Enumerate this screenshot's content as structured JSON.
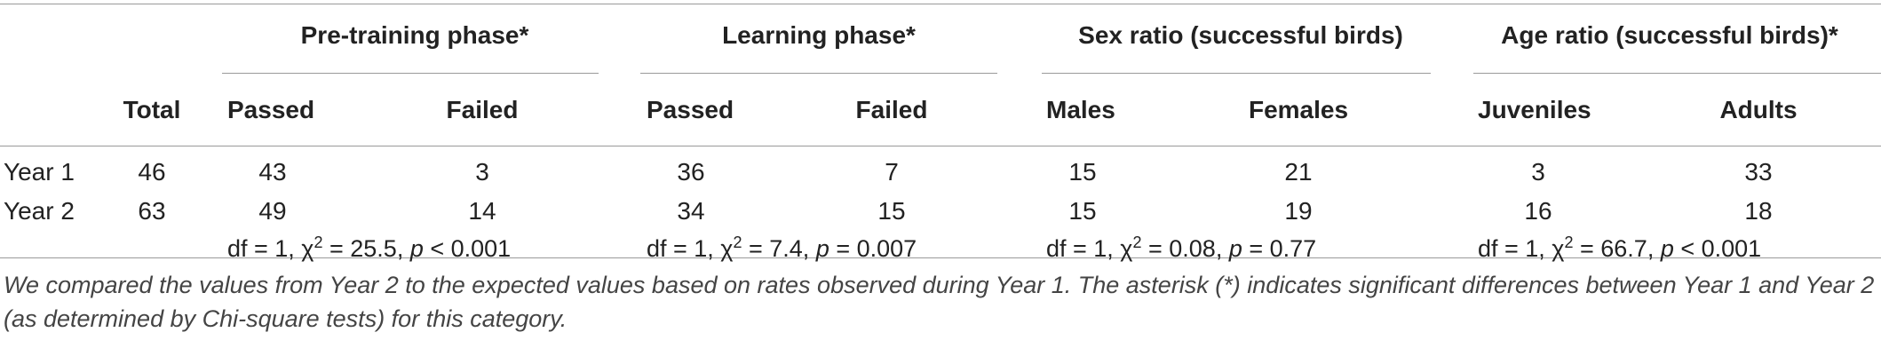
{
  "table": {
    "group_headers": [
      "Pre-training phase*",
      "Learning phase*",
      "Sex ratio (successful birds)",
      "Age ratio (successful birds)*"
    ],
    "column_headers": {
      "total": "Total",
      "pre_passed": "Passed",
      "pre_failed": "Failed",
      "learn_passed": "Passed",
      "learn_failed": "Failed",
      "males": "Males",
      "females": "Females",
      "juveniles": "Juveniles",
      "adults": "Adults"
    },
    "rows": [
      {
        "label": "Year 1",
        "cells": [
          "46",
          "43",
          "3",
          "36",
          "7",
          "15",
          "21",
          "3",
          "33"
        ]
      },
      {
        "label": "Year 2",
        "cells": [
          "63",
          "49",
          "14",
          "34",
          "15",
          "15",
          "19",
          "16",
          "18"
        ]
      }
    ],
    "stats": [
      {
        "df": "df = 1, χ",
        "sup": "2",
        "chi": " = 25.5, ",
        "p": "p",
        "pval": " < 0.001"
      },
      {
        "df": "df = 1, χ",
        "sup": "2",
        "chi": " = 7.4, ",
        "p": "p",
        "pval": " = 0.007"
      },
      {
        "df": "df = 1, χ",
        "sup": "2",
        "chi": " = 0.08, ",
        "p": "p",
        "pval": " = 0.77"
      },
      {
        "df": "df = 1, χ",
        "sup": "2",
        "chi": " = 66.7, ",
        "p": "p",
        "pval": " < 0.001"
      }
    ]
  },
  "footnote": "We compared the values from Year 2 to the expected values based on rates observed during Year 1. The asterisk (*) indicates significant differences between Year 1 and Year 2 (as determined by Chi-square tests) for this category."
}
